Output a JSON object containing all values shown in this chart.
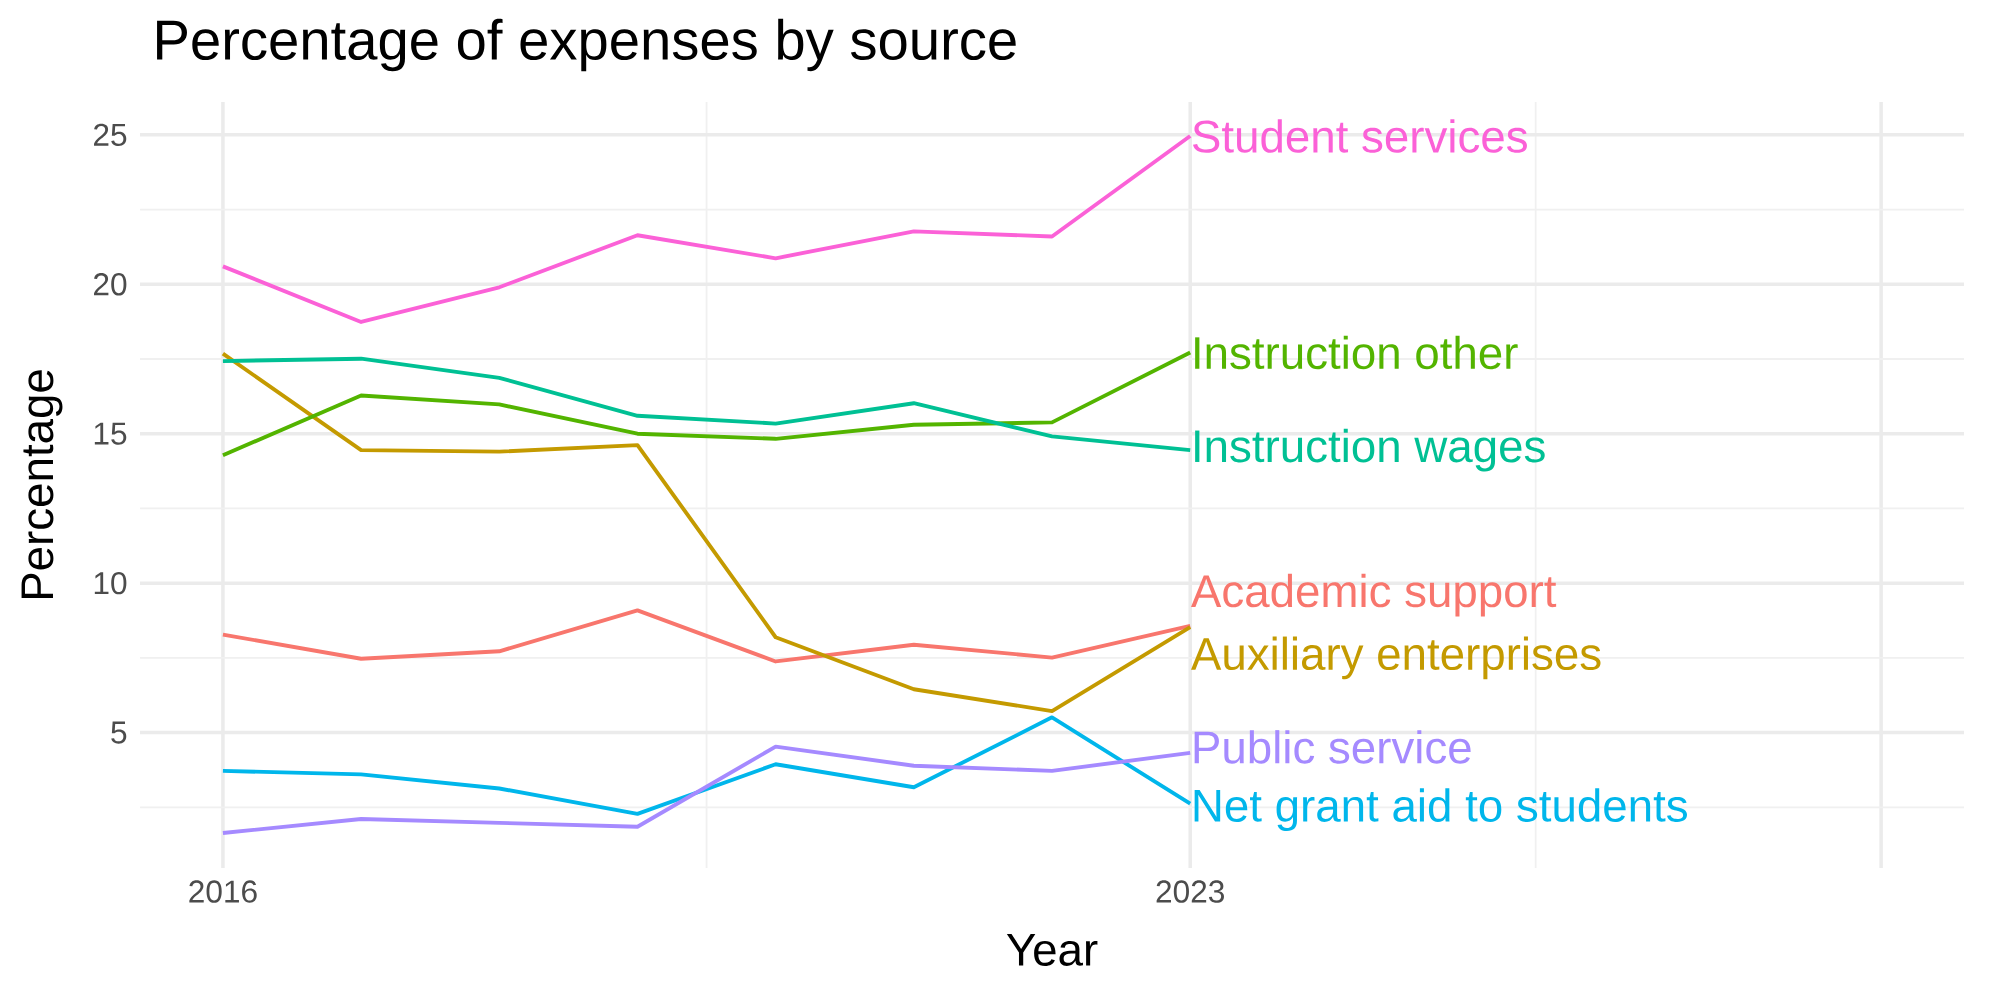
{
  "chart_data": {
    "type": "line",
    "title": "Percentage of expenses by source",
    "xlabel": "Year",
    "ylabel": "Percentage",
    "x": [
      2016,
      2017,
      2018,
      2019,
      2020,
      2021,
      2022,
      2023
    ],
    "xlim": [
      2015.4,
      2028.6
    ],
    "xticks": [
      2016,
      2023,
      {
        "value": 2028,
        "label": null
      }
    ],
    "ylim": [
      0.47,
      26.1
    ],
    "yticks": [
      5,
      10,
      15,
      20,
      25
    ],
    "grid": true,
    "legend": false,
    "marker": "none",
    "line_style": "solid",
    "series": [
      {
        "name": "Academic support",
        "color": "#f8766d",
        "values": [
          8.28,
          7.47,
          7.72,
          9.09,
          7.38,
          7.94,
          7.51,
          8.57
        ]
      },
      {
        "name": "Auxiliary enterprises",
        "color": "#c49a00",
        "values": [
          17.68,
          14.45,
          14.4,
          14.62,
          8.19,
          6.45,
          5.72,
          8.53
        ]
      },
      {
        "name": "Instruction other",
        "color": "#53b400",
        "values": [
          14.28,
          16.28,
          15.98,
          15.0,
          14.83,
          15.3,
          15.38,
          17.72
        ]
      },
      {
        "name": "Instruction wages",
        "color": "#00c094",
        "values": [
          17.43,
          17.51,
          16.87,
          15.6,
          15.34,
          16.02,
          14.91,
          14.45
        ]
      },
      {
        "name": "Net grant aid to students",
        "color": "#00b6eb",
        "values": [
          3.72,
          3.6,
          3.13,
          2.28,
          3.94,
          3.17,
          5.51,
          2.62
        ]
      },
      {
        "name": "Public service",
        "color": "#a58aff",
        "values": [
          1.64,
          2.11,
          1.98,
          1.85,
          4.53,
          3.89,
          3.72,
          4.32
        ]
      },
      {
        "name": "Student services",
        "color": "#fb61d7",
        "values": [
          20.6,
          18.74,
          19.9,
          21.64,
          20.87,
          21.77,
          21.6,
          24.96
        ]
      }
    ]
  }
}
